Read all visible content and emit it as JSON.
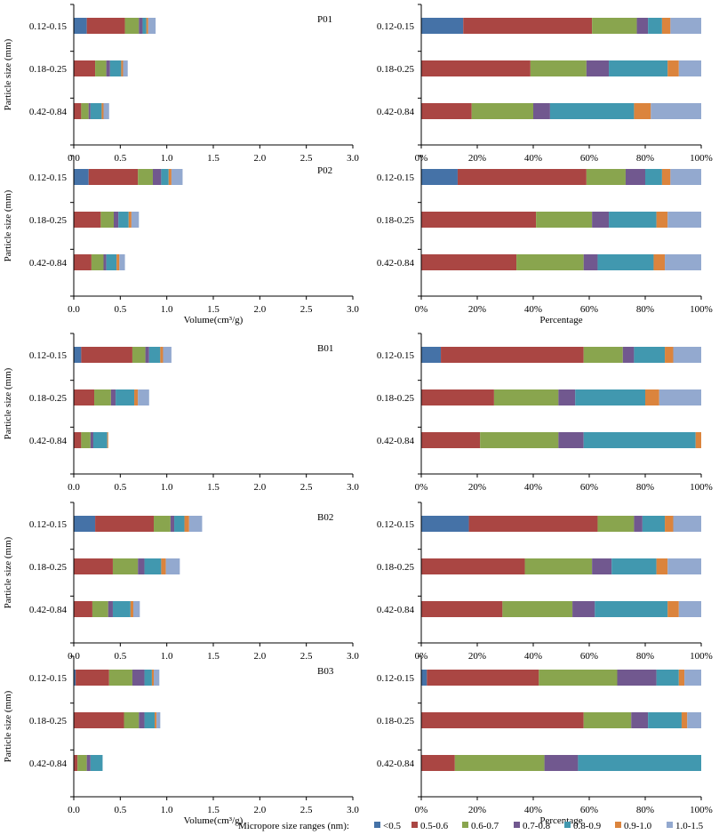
{
  "legend": {
    "title": "Micropore size ranges (nm):",
    "items": [
      {
        "label": "<0.5",
        "color": "#4572a7"
      },
      {
        "label": "0.5-0.6",
        "color": "#aa4643"
      },
      {
        "label": "0.6-0.7",
        "color": "#89a54e"
      },
      {
        "label": "0.7-0.8",
        "color": "#71588f"
      },
      {
        "label": "0.8-0.9",
        "color": "#4198af"
      },
      {
        "label": "0.9-1.0",
        "color": "#db843d"
      },
      {
        "label": "1.0-1.5",
        "color": "#93a9cf"
      }
    ]
  },
  "chart_data": [
    {
      "panel": "P01-volume",
      "type": "bar",
      "orientation": "horizontal",
      "stacked": true,
      "sample_label": "P01",
      "ylabel": "Particle size (mm)",
      "xlabel": "",
      "categories": [
        "0.12-0.15",
        "0.18-0.25",
        "0.42-0.84"
      ],
      "xlim": [
        0,
        3
      ],
      "xticks": [
        "0.0",
        "0.5",
        "1.0",
        "1.5",
        "2.0",
        "2.5",
        "3.0"
      ],
      "series": [
        {
          "name": "<0.5",
          "values": [
            0.14,
            0.0,
            0.0
          ]
        },
        {
          "name": "0.5-0.6",
          "values": [
            0.41,
            0.23,
            0.08
          ]
        },
        {
          "name": "0.6-0.7",
          "values": [
            0.15,
            0.12,
            0.08
          ]
        },
        {
          "name": "0.7-0.8",
          "values": [
            0.04,
            0.04,
            0.02
          ]
        },
        {
          "name": "0.8-0.9",
          "values": [
            0.04,
            0.12,
            0.12
          ]
        },
        {
          "name": "0.9-1.0",
          "values": [
            0.02,
            0.02,
            0.02
          ]
        },
        {
          "name": "1.0-1.5",
          "values": [
            0.08,
            0.05,
            0.06
          ]
        }
      ]
    },
    {
      "panel": "P01-percentage",
      "type": "bar",
      "orientation": "horizontal",
      "stacked": true,
      "sample_label": "",
      "ylabel": "",
      "xlabel": "",
      "categories": [
        "0.12-0.15",
        "0.18-0.25",
        "0.42-0.84"
      ],
      "xlim": [
        0,
        100
      ],
      "xticks": [
        "0%",
        "20%",
        "40%",
        "60%",
        "80%",
        "100%"
      ],
      "series": [
        {
          "name": "<0.5",
          "values": [
            15,
            0,
            0
          ]
        },
        {
          "name": "0.5-0.6",
          "values": [
            46,
            39,
            18
          ]
        },
        {
          "name": "0.6-0.7",
          "values": [
            16,
            20,
            22
          ]
        },
        {
          "name": "0.7-0.8",
          "values": [
            4,
            8,
            6
          ]
        },
        {
          "name": "0.8-0.9",
          "values": [
            5,
            21,
            30
          ]
        },
        {
          "name": "0.9-1.0",
          "values": [
            3,
            4,
            6
          ]
        },
        {
          "name": "1.0-1.5",
          "values": [
            11,
            8,
            18
          ]
        }
      ]
    },
    {
      "panel": "P02-volume",
      "type": "bar",
      "orientation": "horizontal",
      "stacked": true,
      "sample_label": "P02",
      "ylabel": "Particle size (mm)",
      "xlabel": "Volume(cm³/g)",
      "categories": [
        "0.12-0.15",
        "0.18-0.25",
        "0.42-0.84"
      ],
      "xlim": [
        0,
        3
      ],
      "xticks": [
        "0.0",
        "0.5",
        "1.0",
        "1.5",
        "2.0",
        "2.5",
        "3.0"
      ],
      "series": [
        {
          "name": "<0.5",
          "values": [
            0.16,
            0.0,
            0.0
          ]
        },
        {
          "name": "0.5-0.6",
          "values": [
            0.53,
            0.29,
            0.19
          ]
        },
        {
          "name": "0.6-0.7",
          "values": [
            0.16,
            0.14,
            0.13
          ]
        },
        {
          "name": "0.7-0.8",
          "values": [
            0.09,
            0.05,
            0.03
          ]
        },
        {
          "name": "0.8-0.9",
          "values": [
            0.08,
            0.11,
            0.11
          ]
        },
        {
          "name": "0.9-1.0",
          "values": [
            0.03,
            0.03,
            0.03
          ]
        },
        {
          "name": "1.0-1.5",
          "values": [
            0.12,
            0.08,
            0.06
          ]
        }
      ]
    },
    {
      "panel": "P02-percentage",
      "type": "bar",
      "orientation": "horizontal",
      "stacked": true,
      "sample_label": "",
      "ylabel": "",
      "xlabel": "Percentage",
      "categories": [
        "0.12-0.15",
        "0.18-0.25",
        "0.42-0.84"
      ],
      "xlim": [
        0,
        100
      ],
      "xticks": [
        "0%",
        "20%",
        "40%",
        "60%",
        "80%",
        "100%"
      ],
      "series": [
        {
          "name": "<0.5",
          "values": [
            13,
            0,
            0
          ]
        },
        {
          "name": "0.5-0.6",
          "values": [
            46,
            41,
            34
          ]
        },
        {
          "name": "0.6-0.7",
          "values": [
            14,
            20,
            24
          ]
        },
        {
          "name": "0.7-0.8",
          "values": [
            7,
            6,
            5
          ]
        },
        {
          "name": "0.8-0.9",
          "values": [
            6,
            17,
            20
          ]
        },
        {
          "name": "0.9-1.0",
          "values": [
            3,
            4,
            4
          ]
        },
        {
          "name": "1.0-1.5",
          "values": [
            11,
            12,
            13
          ]
        }
      ]
    },
    {
      "panel": "B01-volume",
      "type": "bar",
      "orientation": "horizontal",
      "stacked": true,
      "sample_label": "B01",
      "ylabel": "Particle size (mm)",
      "xlabel": "",
      "categories": [
        "0.12-0.15",
        "0.18-0.25",
        "0.42-0.84"
      ],
      "xlim": [
        0,
        3
      ],
      "xticks": [
        "0.0",
        "0.5",
        "1.0",
        "1.5",
        "2.0",
        "2.5",
        "3.0"
      ],
      "series": [
        {
          "name": "<0.5",
          "values": [
            0.08,
            0.0,
            0.0
          ]
        },
        {
          "name": "0.5-0.6",
          "values": [
            0.55,
            0.22,
            0.08
          ]
        },
        {
          "name": "0.6-0.7",
          "values": [
            0.14,
            0.18,
            0.1
          ]
        },
        {
          "name": "0.7-0.8",
          "values": [
            0.04,
            0.05,
            0.03
          ]
        },
        {
          "name": "0.8-0.9",
          "values": [
            0.12,
            0.2,
            0.15
          ]
        },
        {
          "name": "0.9-1.0",
          "values": [
            0.03,
            0.04,
            0.01
          ]
        },
        {
          "name": "1.0-1.5",
          "values": [
            0.09,
            0.12,
            0.0
          ]
        }
      ]
    },
    {
      "panel": "B01-percentage",
      "type": "bar",
      "orientation": "horizontal",
      "stacked": true,
      "sample_label": "",
      "ylabel": "",
      "xlabel": "",
      "categories": [
        "0.12-0.15",
        "0.18-0.25",
        "0.42-0.84"
      ],
      "xlim": [
        0,
        100
      ],
      "xticks": [
        "0%",
        "20%",
        "40%",
        "60%",
        "80%",
        "100%"
      ],
      "series": [
        {
          "name": "<0.5",
          "values": [
            7,
            0,
            0
          ]
        },
        {
          "name": "0.5-0.6",
          "values": [
            51,
            26,
            21
          ]
        },
        {
          "name": "0.6-0.7",
          "values": [
            14,
            23,
            28
          ]
        },
        {
          "name": "0.7-0.8",
          "values": [
            4,
            6,
            9
          ]
        },
        {
          "name": "0.8-0.9",
          "values": [
            11,
            25,
            40
          ]
        },
        {
          "name": "0.9-1.0",
          "values": [
            3,
            5,
            2
          ]
        },
        {
          "name": "1.0-1.5",
          "values": [
            10,
            15,
            0
          ]
        }
      ]
    },
    {
      "panel": "B02-volume",
      "type": "bar",
      "orientation": "horizontal",
      "stacked": true,
      "sample_label": "B02",
      "ylabel": "Particle size (mm)",
      "xlabel": "",
      "categories": [
        "0.12-0.15",
        "0.18-0.25",
        "0.42-0.84"
      ],
      "xlim": [
        0,
        3
      ],
      "xticks": [
        "0.0",
        "0.5",
        "1.0",
        "1.5",
        "2.0",
        "2.5",
        "3.0"
      ],
      "series": [
        {
          "name": "<0.5",
          "values": [
            0.23,
            0.0,
            0.0
          ]
        },
        {
          "name": "0.5-0.6",
          "values": [
            0.63,
            0.42,
            0.2
          ]
        },
        {
          "name": "0.6-0.7",
          "values": [
            0.18,
            0.27,
            0.17
          ]
        },
        {
          "name": "0.7-0.8",
          "values": [
            0.04,
            0.07,
            0.05
          ]
        },
        {
          "name": "0.8-0.9",
          "values": [
            0.11,
            0.18,
            0.19
          ]
        },
        {
          "name": "0.9-1.0",
          "values": [
            0.05,
            0.05,
            0.03
          ]
        },
        {
          "name": "1.0-1.5",
          "values": [
            0.14,
            0.15,
            0.07
          ]
        }
      ]
    },
    {
      "panel": "B02-percentage",
      "type": "bar",
      "orientation": "horizontal",
      "stacked": true,
      "sample_label": "",
      "ylabel": "",
      "xlabel": "",
      "categories": [
        "0.12-0.15",
        "0.18-0.25",
        "0.42-0.84"
      ],
      "xlim": [
        0,
        100
      ],
      "xticks": [
        "0%",
        "20%",
        "40%",
        "60%",
        "80%",
        "100%"
      ],
      "series": [
        {
          "name": "<0.5",
          "values": [
            17,
            0,
            0
          ]
        },
        {
          "name": "0.5-0.6",
          "values": [
            46,
            37,
            29
          ]
        },
        {
          "name": "0.6-0.7",
          "values": [
            13,
            24,
            25
          ]
        },
        {
          "name": "0.7-0.8",
          "values": [
            3,
            7,
            8
          ]
        },
        {
          "name": "0.8-0.9",
          "values": [
            8,
            16,
            26
          ]
        },
        {
          "name": "0.9-1.0",
          "values": [
            3,
            4,
            4
          ]
        },
        {
          "name": "1.0-1.5",
          "values": [
            10,
            12,
            8
          ]
        }
      ]
    },
    {
      "panel": "B03-volume",
      "type": "bar",
      "orientation": "horizontal",
      "stacked": true,
      "sample_label": "B03",
      "ylabel": "Particle size (mm)",
      "xlabel": "Volume(cm³/g)",
      "categories": [
        "0.12-0.15",
        "0.18-0.25",
        "0.42-0.84"
      ],
      "xlim": [
        0,
        3
      ],
      "xticks": [
        "0.0",
        "0.5",
        "1.0",
        "1.5",
        "2.0",
        "2.5",
        "3.0"
      ],
      "series": [
        {
          "name": "<0.5",
          "values": [
            0.02,
            0.0,
            0.0
          ]
        },
        {
          "name": "0.5-0.6",
          "values": [
            0.36,
            0.54,
            0.04
          ]
        },
        {
          "name": "0.6-0.7",
          "values": [
            0.25,
            0.16,
            0.1
          ]
        },
        {
          "name": "0.7-0.8",
          "values": [
            0.13,
            0.06,
            0.04
          ]
        },
        {
          "name": "0.8-0.9",
          "values": [
            0.08,
            0.11,
            0.13
          ]
        },
        {
          "name": "0.9-1.0",
          "values": [
            0.02,
            0.02,
            0.0
          ]
        },
        {
          "name": "1.0-1.5",
          "values": [
            0.06,
            0.04,
            0.0
          ]
        }
      ]
    },
    {
      "panel": "B03-percentage",
      "type": "bar",
      "orientation": "horizontal",
      "stacked": true,
      "sample_label": "",
      "ylabel": "",
      "xlabel": "Percentage",
      "categories": [
        "0.12-0.15",
        "0.18-0.25",
        "0.42-0.84"
      ],
      "xlim": [
        0,
        100
      ],
      "xticks": [
        "0%",
        "20%",
        "40%",
        "60%",
        "80%",
        "100%"
      ],
      "series": [
        {
          "name": "<0.5",
          "values": [
            2,
            0,
            0
          ]
        },
        {
          "name": "0.5-0.6",
          "values": [
            40,
            58,
            12
          ]
        },
        {
          "name": "0.6-0.7",
          "values": [
            28,
            17,
            32
          ]
        },
        {
          "name": "0.7-0.8",
          "values": [
            14,
            6,
            12
          ]
        },
        {
          "name": "0.8-0.9",
          "values": [
            8,
            12,
            44
          ]
        },
        {
          "name": "0.9-1.0",
          "values": [
            2,
            2,
            0
          ]
        },
        {
          "name": "1.0-1.5",
          "values": [
            6,
            5,
            0
          ]
        }
      ]
    }
  ]
}
